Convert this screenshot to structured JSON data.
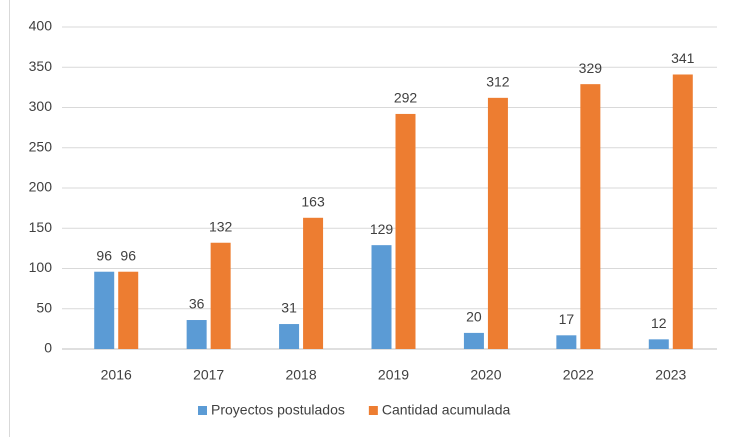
{
  "chart_data": {
    "type": "bar",
    "categories": [
      "2016",
      "2017",
      "2018",
      "2019",
      "2020",
      "2022",
      "2023"
    ],
    "series": [
      {
        "name": "Proyectos postulados",
        "color": "#5b9bd5",
        "values": [
          96,
          36,
          31,
          129,
          20,
          17,
          12
        ]
      },
      {
        "name": "Cantidad acumulada",
        "color": "#ed7d31",
        "values": [
          96,
          132,
          163,
          292,
          312,
          329,
          341
        ]
      }
    ],
    "ylim": [
      0,
      400
    ],
    "yticks": [
      0,
      50,
      100,
      150,
      200,
      250,
      300,
      350,
      400
    ],
    "grid": true,
    "legend": "bottom",
    "data_labels": true
  }
}
